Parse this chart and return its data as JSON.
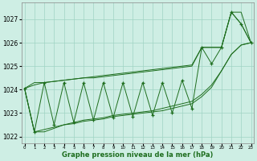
{
  "title": "Graphe pression niveau de la mer (hPa)",
  "hours": [
    0,
    1,
    2,
    3,
    4,
    5,
    6,
    7,
    8,
    9,
    10,
    11,
    12,
    13,
    14,
    15,
    16,
    17,
    18,
    19,
    20,
    21,
    22,
    23
  ],
  "xlim": [
    -0.3,
    23.3
  ],
  "ylim": [
    1021.7,
    1027.7
  ],
  "yticks": [
    1022,
    1023,
    1024,
    1025,
    1026,
    1027
  ],
  "background_color": "#ceeee4",
  "grid_color": "#9fd4c4",
  "line_color": "#1e6e1e",
  "oscillating": [
    1024.05,
    1022.2,
    1024.3,
    1022.5,
    1024.3,
    1022.6,
    1024.3,
    1022.7,
    1024.3,
    1022.8,
    1024.3,
    1022.85,
    1024.3,
    1022.9,
    1024.3,
    1023.0,
    1024.4,
    1023.2,
    1025.8,
    1025.1,
    1025.8,
    1027.3,
    1026.8,
    1026.0
  ],
  "trend_upper": [
    1024.05,
    1024.2,
    1024.3,
    1024.35,
    1024.4,
    1024.45,
    1024.5,
    1024.55,
    1024.6,
    1024.65,
    1024.7,
    1024.75,
    1024.8,
    1024.85,
    1024.9,
    1024.95,
    1025.0,
    1025.05,
    1025.8,
    1025.8,
    1025.8,
    1027.3,
    1027.3,
    1026.0
  ],
  "trend_lower": [
    1024.05,
    1022.2,
    1022.3,
    1022.4,
    1022.5,
    1022.6,
    1022.7,
    1022.75,
    1022.8,
    1022.9,
    1022.95,
    1023.0,
    1023.05,
    1023.1,
    1023.2,
    1023.3,
    1023.4,
    1023.5,
    1023.8,
    1024.2,
    1024.8,
    1025.5,
    1025.9,
    1026.0
  ],
  "line2_upper": [
    1024.05,
    1024.3,
    1024.3,
    1024.35,
    1024.4,
    1024.45,
    1024.5,
    1024.5,
    1024.55,
    1024.6,
    1024.65,
    1024.7,
    1024.75,
    1024.8,
    1024.85,
    1024.9,
    1024.95,
    1025.0,
    1025.8,
    1025.8,
    1025.8,
    1027.3,
    1026.8,
    1026.0
  ],
  "line2_lower": [
    1024.05,
    1022.2,
    1022.2,
    1022.35,
    1022.5,
    1022.55,
    1022.65,
    1022.7,
    1022.75,
    1022.85,
    1022.9,
    1022.95,
    1023.0,
    1023.05,
    1023.1,
    1023.2,
    1023.3,
    1023.4,
    1023.7,
    1024.1,
    1024.8,
    1025.5,
    1025.9,
    1026.0
  ]
}
